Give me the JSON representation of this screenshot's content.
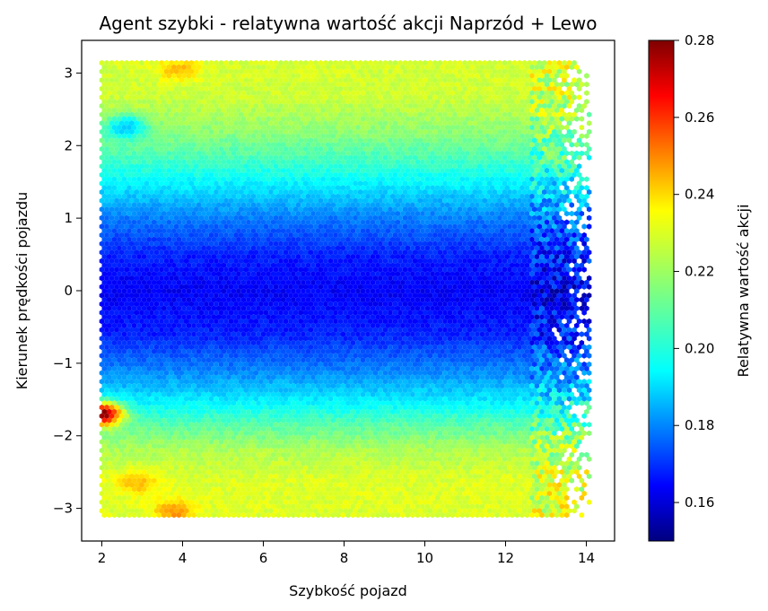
{
  "chart_data": {
    "type": "heatmap",
    "subtype": "hexbin",
    "title": "Agent szybki - relatywna wartość akcji Naprzód + Lewo",
    "xlabel": "Szybkość pojazd",
    "ylabel": "Kierunek prędkości pojazdu",
    "xlim": [
      1.5,
      14.7
    ],
    "ylim": [
      -3.45,
      3.45
    ],
    "xticks": [
      2,
      4,
      6,
      8,
      10,
      12,
      14
    ],
    "xtick_labels": [
      "2",
      "4",
      "6",
      "8",
      "10",
      "12",
      "14"
    ],
    "yticks": [
      -3,
      -2,
      -1,
      0,
      1,
      2,
      3
    ],
    "ytick_labels": [
      "−3",
      "−2",
      "−1",
      "0",
      "1",
      "2",
      "3"
    ],
    "data_extent": {
      "x": [
        2.0,
        14.1
      ],
      "y": [
        -3.14,
        3.14
      ]
    },
    "colormap": "jet",
    "colorbar": {
      "label": "Relatywna wartość akcji",
      "range": [
        0.15,
        0.28
      ],
      "ticks": [
        0.16,
        0.18,
        0.2,
        0.22,
        0.24,
        0.26,
        0.28
      ],
      "tick_labels": [
        "0.16",
        "0.18",
        "0.20",
        "0.22",
        "0.24",
        "0.26",
        "0.28"
      ]
    },
    "value_profile_by_y": [
      {
        "y": -3.14,
        "value": 0.227
      },
      {
        "y": -2.6,
        "value": 0.227
      },
      {
        "y": -2.2,
        "value": 0.221
      },
      {
        "y": -1.85,
        "value": 0.21
      },
      {
        "y": -1.5,
        "value": 0.196
      },
      {
        "y": -1.1,
        "value": 0.183
      },
      {
        "y": -0.6,
        "value": 0.17
      },
      {
        "y": 0.0,
        "value": 0.165
      },
      {
        "y": 0.5,
        "value": 0.17
      },
      {
        "y": 1.0,
        "value": 0.182
      },
      {
        "y": 1.4,
        "value": 0.195
      },
      {
        "y": 1.8,
        "value": 0.207
      },
      {
        "y": 2.2,
        "value": 0.217
      },
      {
        "y": 2.7,
        "value": 0.225
      },
      {
        "y": 3.14,
        "value": 0.226
      }
    ],
    "hotspots": [
      {
        "x": 3.8,
        "y": -3.05,
        "value": 0.245
      },
      {
        "x": 2.9,
        "y": -2.65,
        "value": 0.24
      },
      {
        "x": 3.9,
        "y": 3.05,
        "value": 0.24
      },
      {
        "x": 2.6,
        "y": 2.25,
        "value": 0.19
      },
      {
        "x": 2.0,
        "y": -1.7,
        "value": 0.28
      }
    ]
  }
}
